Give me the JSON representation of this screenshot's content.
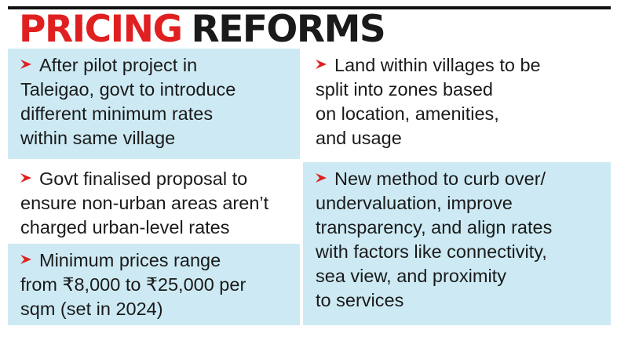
{
  "title": {
    "word1": "PRICING",
    "word2": "REFORMS"
  },
  "colors": {
    "accent": "#e02020",
    "panel_bg": "#cdeaf4",
    "text": "#1a1a1a"
  },
  "bullets_left": [
    {
      "lines": [
        "After pilot project in",
        "Taleigao, govt to introduce",
        "different minimum rates",
        "within same village"
      ]
    },
    {
      "lines": [
        "Govt finalised proposal to",
        "ensure non-urban areas aren’t",
        "charged urban-level rates"
      ]
    },
    {
      "lines": [
        "Minimum prices range",
        "from ₹8,000 to ₹25,000 per",
        "sqm (set in 2024)"
      ]
    }
  ],
  "bullets_right": [
    {
      "lines": [
        "Land within villages to be",
        "split into zones based",
        "on location, amenities,",
        "and usage"
      ]
    },
    {
      "lines": [
        "New method to curb over/",
        "undervaluation, improve",
        "transparency, and align rates",
        "with factors like connectivity,",
        "sea view, and proximity",
        "to services"
      ]
    }
  ],
  "icons": {
    "bullet": "red-arrow-chevron-icon"
  }
}
